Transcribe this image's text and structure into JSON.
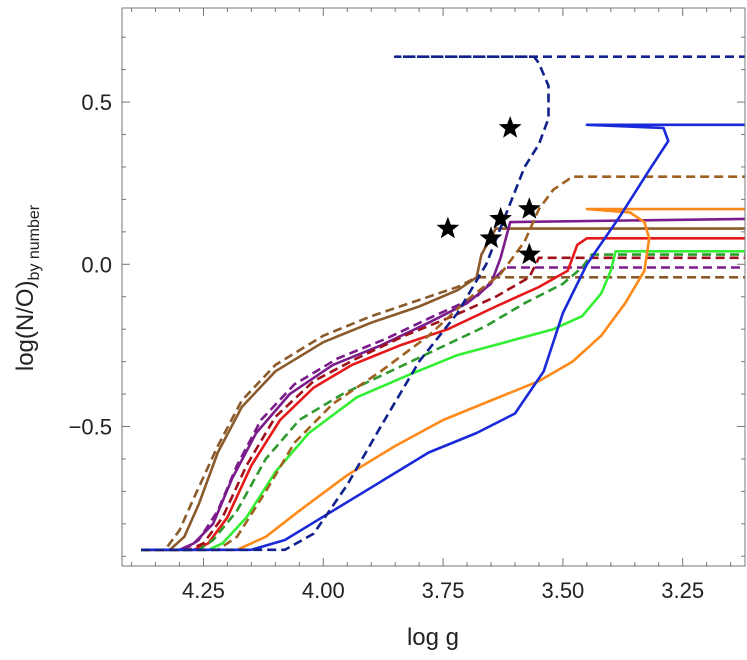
{
  "chart_data": {
    "type": "line",
    "xlabel": "log g",
    "ylabel_main": "log(N/O)",
    "ylabel_sub": "by number",
    "xlim": [
      4.42,
      3.12
    ],
    "ylim": [
      -0.93,
      0.79
    ],
    "x_reversed": true,
    "grid": false,
    "legend": "none",
    "xticks": [
      {
        "value": 4.25,
        "label": "4.25"
      },
      {
        "value": 4.0,
        "label": "4.00"
      },
      {
        "value": 3.75,
        "label": "3.75"
      },
      {
        "value": 3.5,
        "label": "3.50"
      },
      {
        "value": 3.25,
        "label": "3.25"
      }
    ],
    "yticks": [
      {
        "value": 0.5,
        "label": "0.5"
      },
      {
        "value": 0.0,
        "label": "0.0"
      },
      {
        "value": -0.5,
        "label": "−0.5"
      }
    ],
    "series": [
      {
        "color": "#8B5A2B",
        "dash": false,
        "points": [
          [
            4.38,
            -0.88
          ],
          [
            4.32,
            -0.88
          ],
          [
            4.29,
            -0.84
          ],
          [
            4.26,
            -0.74
          ],
          [
            4.22,
            -0.58
          ],
          [
            4.17,
            -0.44
          ],
          [
            4.1,
            -0.33
          ],
          [
            4.0,
            -0.24
          ],
          [
            3.9,
            -0.18
          ],
          [
            3.8,
            -0.13
          ],
          [
            3.72,
            -0.08
          ],
          [
            3.68,
            -0.04
          ],
          [
            3.67,
            0.03
          ],
          [
            3.64,
            0.11
          ],
          [
            3.55,
            0.11
          ],
          [
            3.12,
            0.11
          ]
        ]
      },
      {
        "color": "#8B5A2B",
        "dash": true,
        "points": [
          [
            4.38,
            -0.88
          ],
          [
            4.33,
            -0.88
          ],
          [
            4.3,
            -0.82
          ],
          [
            4.27,
            -0.72
          ],
          [
            4.22,
            -0.56
          ],
          [
            4.17,
            -0.42
          ],
          [
            4.1,
            -0.31
          ],
          [
            4.0,
            -0.22
          ],
          [
            3.9,
            -0.16
          ],
          [
            3.8,
            -0.11
          ],
          [
            3.72,
            -0.07
          ],
          [
            3.68,
            -0.04
          ],
          [
            3.12,
            -0.04
          ]
        ]
      },
      {
        "color": "#7B1C8C",
        "dash": false,
        "points": [
          [
            4.38,
            -0.88
          ],
          [
            4.3,
            -0.88
          ],
          [
            4.27,
            -0.86
          ],
          [
            4.23,
            -0.8
          ],
          [
            4.19,
            -0.66
          ],
          [
            4.14,
            -0.52
          ],
          [
            4.07,
            -0.4
          ],
          [
            3.98,
            -0.31
          ],
          [
            3.88,
            -0.25
          ],
          [
            3.78,
            -0.18
          ],
          [
            3.7,
            -0.12
          ],
          [
            3.65,
            -0.06
          ],
          [
            3.63,
            0.02
          ],
          [
            3.61,
            0.13
          ],
          [
            3.12,
            0.14
          ]
        ]
      },
      {
        "color": "#7B1C8C",
        "dash": true,
        "points": [
          [
            4.38,
            -0.88
          ],
          [
            4.29,
            -0.88
          ],
          [
            4.26,
            -0.85
          ],
          [
            4.22,
            -0.76
          ],
          [
            4.18,
            -0.62
          ],
          [
            4.13,
            -0.48
          ],
          [
            4.06,
            -0.37
          ],
          [
            3.97,
            -0.29
          ],
          [
            3.87,
            -0.23
          ],
          [
            3.77,
            -0.16
          ],
          [
            3.68,
            -0.1
          ],
          [
            3.62,
            -0.01
          ],
          [
            3.12,
            -0.01
          ]
        ]
      },
      {
        "color": "#E6191A",
        "dash": false,
        "points": [
          [
            4.38,
            -0.88
          ],
          [
            4.27,
            -0.88
          ],
          [
            4.24,
            -0.86
          ],
          [
            4.2,
            -0.78
          ],
          [
            4.15,
            -0.62
          ],
          [
            4.09,
            -0.48
          ],
          [
            4.02,
            -0.38
          ],
          [
            3.94,
            -0.31
          ],
          [
            3.84,
            -0.25
          ],
          [
            3.74,
            -0.2
          ],
          [
            3.64,
            -0.13
          ],
          [
            3.55,
            -0.07
          ],
          [
            3.49,
            -0.02
          ],
          [
            3.47,
            0.06
          ],
          [
            3.45,
            0.08
          ],
          [
            3.12,
            0.08
          ]
        ]
      },
      {
        "color": "#A0101A",
        "dash": true,
        "points": [
          [
            4.38,
            -0.88
          ],
          [
            4.28,
            -0.88
          ],
          [
            4.25,
            -0.86
          ],
          [
            4.21,
            -0.78
          ],
          [
            4.16,
            -0.62
          ],
          [
            4.1,
            -0.47
          ],
          [
            4.02,
            -0.36
          ],
          [
            3.93,
            -0.29
          ],
          [
            3.83,
            -0.22
          ],
          [
            3.73,
            -0.16
          ],
          [
            3.64,
            -0.1
          ],
          [
            3.57,
            -0.04
          ],
          [
            3.55,
            0.02
          ],
          [
            3.12,
            0.02
          ]
        ]
      },
      {
        "color": "#2E9B2E",
        "dash": true,
        "points": [
          [
            4.38,
            -0.88
          ],
          [
            4.26,
            -0.88
          ],
          [
            4.23,
            -0.85
          ],
          [
            4.18,
            -0.76
          ],
          [
            4.12,
            -0.6
          ],
          [
            4.05,
            -0.48
          ],
          [
            3.96,
            -0.4
          ],
          [
            3.86,
            -0.33
          ],
          [
            3.76,
            -0.26
          ],
          [
            3.66,
            -0.19
          ],
          [
            3.58,
            -0.12
          ],
          [
            3.5,
            -0.06
          ],
          [
            3.46,
            -0.01
          ],
          [
            3.44,
            0.03
          ],
          [
            3.12,
            0.03
          ]
        ]
      },
      {
        "color": "#33EE33",
        "dash": false,
        "points": [
          [
            4.38,
            -0.88
          ],
          [
            4.24,
            -0.88
          ],
          [
            4.21,
            -0.86
          ],
          [
            4.16,
            -0.78
          ],
          [
            4.1,
            -0.64
          ],
          [
            4.03,
            -0.52
          ],
          [
            3.93,
            -0.41
          ],
          [
            3.82,
            -0.34
          ],
          [
            3.72,
            -0.28
          ],
          [
            3.62,
            -0.24
          ],
          [
            3.52,
            -0.2
          ],
          [
            3.46,
            -0.16
          ],
          [
            3.42,
            -0.09
          ],
          [
            3.4,
            -0.02
          ],
          [
            3.39,
            0.04
          ],
          [
            3.12,
            0.04
          ]
        ]
      },
      {
        "color": "#A06020",
        "dash": true,
        "points": [
          [
            4.38,
            -0.88
          ],
          [
            4.22,
            -0.88
          ],
          [
            4.18,
            -0.84
          ],
          [
            4.12,
            -0.7
          ],
          [
            4.06,
            -0.55
          ],
          [
            3.98,
            -0.43
          ],
          [
            3.88,
            -0.33
          ],
          [
            3.78,
            -0.22
          ],
          [
            3.7,
            -0.11
          ],
          [
            3.63,
            -0.03
          ],
          [
            3.58,
            0.07
          ],
          [
            3.55,
            0.17
          ],
          [
            3.52,
            0.23
          ],
          [
            3.48,
            0.27
          ],
          [
            3.12,
            0.27
          ]
        ]
      },
      {
        "color": "#FF8A1A",
        "dash": false,
        "points": [
          [
            4.38,
            -0.88
          ],
          [
            4.18,
            -0.88
          ],
          [
            4.12,
            -0.84
          ],
          [
            4.05,
            -0.76
          ],
          [
            3.95,
            -0.65
          ],
          [
            3.85,
            -0.56
          ],
          [
            3.75,
            -0.48
          ],
          [
            3.65,
            -0.42
          ],
          [
            3.55,
            -0.36
          ],
          [
            3.48,
            -0.3
          ],
          [
            3.42,
            -0.22
          ],
          [
            3.37,
            -0.12
          ],
          [
            3.33,
            -0.02
          ],
          [
            3.32,
            0.08
          ],
          [
            3.33,
            0.13
          ],
          [
            3.36,
            0.16
          ],
          [
            3.45,
            0.17
          ],
          [
            3.12,
            0.17
          ]
        ]
      },
      {
        "color": "#1A2AD9",
        "dash": false,
        "points": [
          [
            4.38,
            -0.88
          ],
          [
            4.15,
            -0.88
          ],
          [
            4.08,
            -0.85
          ],
          [
            3.98,
            -0.76
          ],
          [
            3.88,
            -0.67
          ],
          [
            3.78,
            -0.58
          ],
          [
            3.68,
            -0.52
          ],
          [
            3.6,
            -0.46
          ],
          [
            3.54,
            -0.33
          ],
          [
            3.5,
            -0.15
          ],
          [
            3.45,
            0.0
          ],
          [
            3.38,
            0.15
          ],
          [
            3.32,
            0.29
          ],
          [
            3.28,
            0.38
          ],
          [
            3.29,
            0.42
          ],
          [
            3.45,
            0.43
          ],
          [
            3.12,
            0.43
          ]
        ]
      },
      {
        "color": "#10208C",
        "dash": true,
        "points": [
          [
            4.38,
            -0.88
          ],
          [
            4.08,
            -0.88
          ],
          [
            4.02,
            -0.83
          ],
          [
            3.95,
            -0.68
          ],
          [
            3.88,
            -0.5
          ],
          [
            3.8,
            -0.3
          ],
          [
            3.72,
            -0.15
          ],
          [
            3.66,
            0.0
          ],
          [
            3.62,
            0.15
          ],
          [
            3.58,
            0.3
          ],
          [
            3.55,
            0.37
          ],
          [
            3.53,
            0.45
          ],
          [
            3.53,
            0.55
          ],
          [
            3.55,
            0.62
          ],
          [
            3.56,
            0.64
          ],
          [
            3.85,
            0.64
          ],
          [
            3.12,
            0.64
          ]
        ]
      }
    ],
    "stars": [
      [
        3.74,
        0.11
      ],
      [
        3.61,
        0.42
      ],
      [
        3.63,
        0.14
      ],
      [
        3.65,
        0.08
      ],
      [
        3.57,
        0.17
      ],
      [
        3.57,
        0.03
      ]
    ]
  }
}
